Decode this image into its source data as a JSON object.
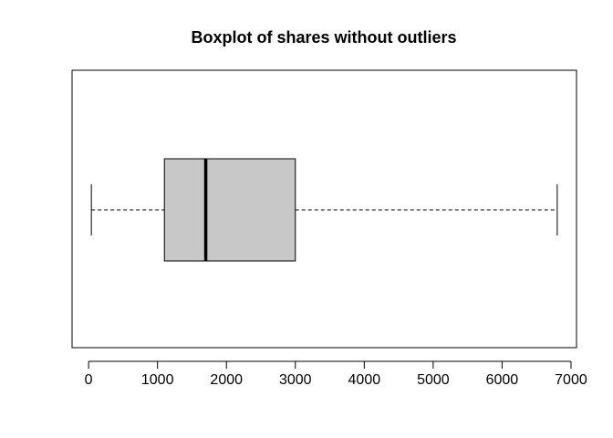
{
  "chart_data": {
    "type": "boxplot",
    "title": "Boxplot of shares without outliers",
    "xlabel": "",
    "ylabel": "",
    "orientation": "horizontal",
    "series": [
      {
        "whisker_low": 40,
        "q1": 1100,
        "median": 1700,
        "q3": 3000,
        "whisker_high": 6800
      }
    ],
    "xlim": [
      -240,
      7080
    ],
    "x_ticks": [
      0,
      1000,
      2000,
      3000,
      4000,
      5000,
      6000,
      7000
    ],
    "x_tick_labels": [
      "0",
      "1000",
      "2000",
      "3000",
      "4000",
      "5000",
      "6000",
      "7000"
    ],
    "grid": false,
    "legend": "none",
    "colors": {
      "box_fill": "#c8c8c8",
      "stroke": "#000000",
      "background": "#ffffff"
    }
  }
}
